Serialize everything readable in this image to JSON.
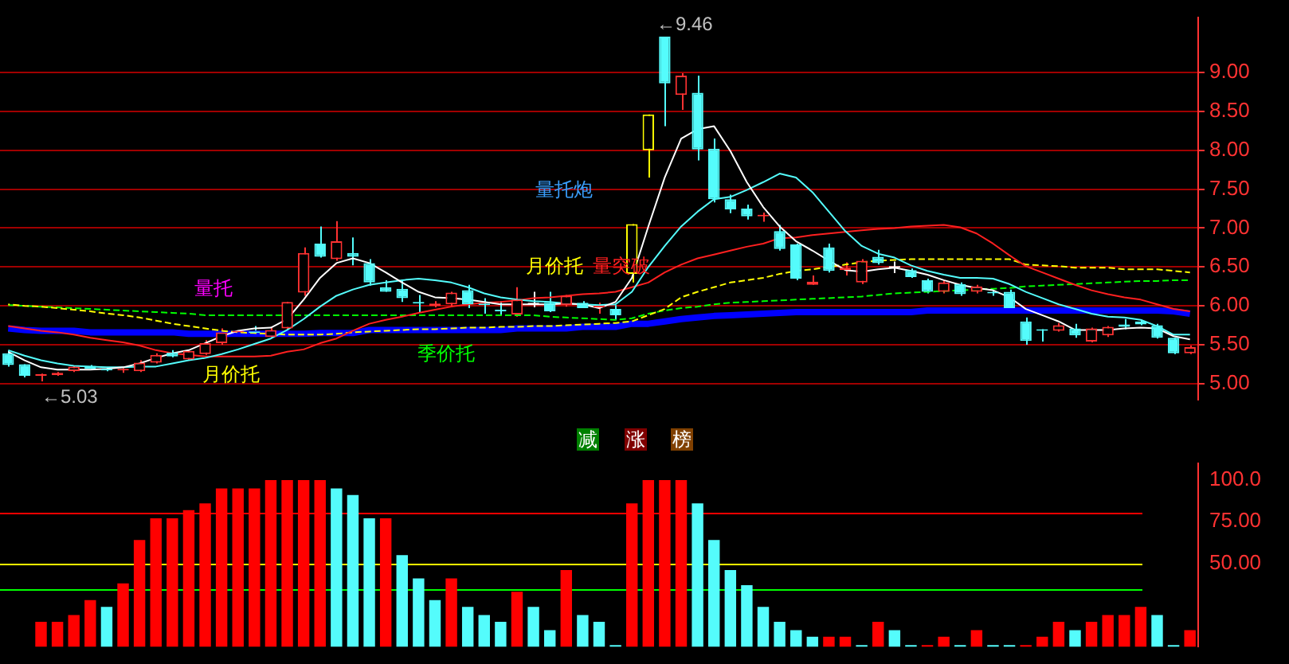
{
  "chart_data": [
    {
      "type": "candlestick",
      "categories": [
        null,
        null,
        null,
        null,
        null,
        null,
        null,
        null,
        null,
        null,
        null,
        null,
        null,
        null,
        null,
        null,
        null,
        null,
        null,
        null,
        null,
        null,
        null,
        null,
        null,
        null,
        null,
        null,
        null,
        null,
        null,
        null,
        null,
        null,
        null,
        null,
        null,
        null,
        null,
        null,
        null,
        null,
        null,
        null,
        null,
        null,
        null,
        null,
        null,
        null,
        null,
        null,
        null,
        null,
        null,
        null,
        null,
        null,
        null,
        null,
        null,
        null,
        null,
        null,
        null,
        null,
        null,
        null,
        null,
        null,
        null,
        null,
        null
      ],
      "ohlc": [
        [
          5.39,
          5.42,
          5.22,
          5.24
        ],
        [
          5.25,
          5.25,
          5.08,
          5.1
        ],
        [
          5.1,
          5.13,
          5.03,
          5.12
        ],
        [
          5.11,
          5.15,
          5.1,
          5.14
        ],
        [
          5.16,
          5.23,
          5.15,
          5.22
        ],
        [
          5.23,
          5.24,
          5.19,
          5.19
        ],
        [
          5.19,
          5.21,
          5.16,
          5.17
        ],
        [
          5.17,
          5.2,
          5.14,
          5.19
        ],
        [
          5.16,
          5.3,
          5.15,
          5.27
        ],
        [
          5.27,
          5.39,
          5.26,
          5.37
        ],
        [
          5.4,
          5.43,
          5.34,
          5.35
        ],
        [
          5.31,
          5.44,
          5.3,
          5.42
        ],
        [
          5.38,
          5.56,
          5.37,
          5.52
        ],
        [
          5.52,
          5.71,
          5.5,
          5.66
        ],
        [
          5.66,
          5.68,
          5.63,
          5.67
        ],
        [
          5.67,
          5.74,
          5.64,
          5.65
        ],
        [
          5.6,
          5.72,
          5.59,
          5.69
        ],
        [
          5.71,
          6.05,
          5.7,
          6.05
        ],
        [
          6.17,
          6.75,
          6.13,
          6.68
        ],
        [
          6.8,
          7.02,
          6.62,
          6.63
        ],
        [
          6.6,
          7.09,
          6.58,
          6.83
        ],
        [
          6.68,
          6.88,
          6.52,
          6.63
        ],
        [
          6.55,
          6.6,
          6.26,
          6.3
        ],
        [
          6.24,
          6.33,
          6.18,
          6.18
        ],
        [
          6.22,
          6.33,
          6.05,
          6.1
        ],
        [
          6.03,
          6.14,
          5.92,
          6.03
        ],
        [
          6.0,
          6.06,
          5.98,
          6.03
        ],
        [
          6.02,
          6.18,
          5.98,
          6.17
        ],
        [
          6.2,
          6.27,
          5.97,
          6.02
        ],
        [
          6.02,
          6.1,
          5.9,
          6.01
        ],
        [
          5.95,
          6.06,
          5.88,
          5.93
        ],
        [
          5.89,
          6.24,
          5.86,
          6.08
        ],
        [
          6.02,
          6.18,
          5.98,
          6.02
        ],
        [
          6.04,
          6.18,
          5.92,
          5.93
        ],
        [
          6.01,
          6.14,
          5.99,
          6.13
        ],
        [
          6.04,
          6.06,
          5.97,
          5.97
        ],
        [
          5.98,
          6.04,
          5.9,
          5.99
        ],
        [
          5.96,
          6.01,
          5.82,
          5.88
        ],
        [
          6.41,
          7.05,
          6.3,
          7.05
        ],
        [
          8.0,
          8.46,
          7.65,
          8.46
        ],
        [
          9.46,
          9.46,
          8.31,
          8.86
        ],
        [
          8.71,
          8.99,
          8.52,
          8.96
        ],
        [
          8.74,
          8.96,
          7.87,
          8.01
        ],
        [
          8.02,
          8.15,
          7.33,
          7.37
        ],
        [
          7.37,
          7.43,
          7.19,
          7.24
        ],
        [
          7.25,
          7.3,
          7.11,
          7.15
        ],
        [
          7.15,
          7.2,
          7.08,
          7.17
        ],
        [
          6.96,
          7.04,
          6.71,
          6.73
        ],
        [
          6.79,
          6.8,
          6.33,
          6.35
        ],
        [
          6.27,
          6.39,
          6.27,
          6.31
        ],
        [
          6.75,
          6.8,
          6.43,
          6.45
        ],
        [
          6.46,
          6.56,
          6.39,
          6.49
        ],
        [
          6.3,
          6.6,
          6.28,
          6.58
        ],
        [
          6.63,
          6.72,
          6.53,
          6.55
        ],
        [
          6.49,
          6.57,
          6.42,
          6.49
        ],
        [
          6.46,
          6.48,
          6.36,
          6.37
        ],
        [
          6.33,
          6.35,
          6.16,
          6.18
        ],
        [
          6.18,
          6.33,
          6.16,
          6.3
        ],
        [
          6.28,
          6.3,
          6.13,
          6.15
        ],
        [
          6.18,
          6.27,
          6.16,
          6.25
        ],
        [
          6.16,
          6.21,
          6.13,
          6.16
        ],
        [
          6.18,
          6.21,
          5.97,
          5.97
        ],
        [
          5.8,
          5.85,
          5.5,
          5.55
        ],
        [
          5.68,
          5.7,
          5.54,
          5.68
        ],
        [
          5.68,
          5.78,
          5.67,
          5.75
        ],
        [
          5.71,
          5.77,
          5.59,
          5.62
        ],
        [
          5.54,
          5.72,
          5.53,
          5.71
        ],
        [
          5.62,
          5.74,
          5.6,
          5.73
        ],
        [
          5.76,
          5.83,
          5.7,
          5.73
        ],
        [
          5.8,
          5.82,
          5.75,
          5.76
        ],
        [
          5.75,
          5.77,
          5.58,
          5.59
        ],
        [
          5.59,
          5.59,
          5.38,
          5.39
        ],
        [
          5.39,
          5.49,
          5.38,
          5.47
        ]
      ],
      "colors": [
        "#54fcfc",
        "#54fcfc",
        "#ff3232",
        "#ff3232",
        "#ff3232",
        "#54fcfc",
        "#54fcfc",
        "#ff3232",
        "#ff3232",
        "#ff3232",
        "#54fcfc",
        "#ff3232",
        "#ff3232",
        "#ff3232",
        "#ff3232",
        "#54fcfc",
        "#ff3232",
        "#ff3232",
        "#ff3232",
        "#54fcfc",
        "#ff3232",
        "#54fcfc",
        "#54fcfc",
        "#54fcfc",
        "#54fcfc",
        "#54fcfc",
        "#ff3232",
        "#ff3232",
        "#54fcfc",
        "#54fcfc",
        "#54fcfc",
        "#ff3232",
        "#ffffff",
        "#54fcfc",
        "#ff3232",
        "#54fcfc",
        "#ff3232",
        "#54fcfc",
        "#ffff00",
        "#ffff00",
        "#54fcfc",
        "#ff3232",
        "#54fcfc",
        "#54fcfc",
        "#54fcfc",
        "#54fcfc",
        "#ff3232",
        "#54fcfc",
        "#54fcfc",
        "#ff3232",
        "#54fcfc",
        "#ff3232",
        "#ff3232",
        "#54fcfc",
        "#ffffff",
        "#54fcfc",
        "#54fcfc",
        "#ff3232",
        "#54fcfc",
        "#ff3232",
        "#54fcfc",
        "#54fcfc",
        "#54fcfc",
        "#54fcfc",
        "#ff3232",
        "#54fcfc",
        "#ff3232",
        "#ff3232",
        "#54fcfc",
        "#54fcfc",
        "#54fcfc",
        "#54fcfc",
        "#ff3232"
      ],
      "series": [
        {
          "type": "line",
          "color": "#ffffff",
          "values": [
            5.41,
            5.3,
            5.21,
            5.18,
            5.18,
            5.18,
            5.19,
            5.21,
            5.26,
            5.33,
            5.39,
            5.43,
            5.52,
            5.61,
            5.68,
            5.71,
            5.72,
            5.83,
            6.08,
            6.36,
            6.55,
            6.61,
            6.55,
            6.43,
            6.3,
            6.18,
            6.11,
            6.1,
            6.08,
            6.05,
            6.02,
            6.02,
            6.02,
            6.02,
            6.03,
            6.02,
            5.97,
            6.05,
            6.36,
            7.02,
            7.65,
            8.15,
            8.27,
            8.31,
            7.99,
            7.59,
            7.27,
            7.02,
            6.83,
            6.71,
            6.58,
            6.46,
            6.44,
            6.47,
            6.49,
            6.45,
            6.4,
            6.33,
            6.27,
            6.23,
            6.2,
            6.11,
            5.96,
            5.88,
            5.8,
            5.69,
            5.69,
            5.69,
            5.71,
            5.72,
            5.71,
            5.61,
            5.57
          ]
        },
        {
          "type": "line",
          "color": "#54fcfc",
          "values": [
            5.43,
            5.36,
            5.3,
            5.26,
            5.23,
            5.22,
            5.21,
            5.21,
            5.22,
            5.22,
            5.26,
            5.3,
            5.33,
            5.38,
            5.44,
            5.51,
            5.58,
            5.69,
            5.83,
            5.99,
            6.13,
            6.21,
            6.27,
            6.3,
            6.33,
            6.35,
            6.33,
            6.3,
            6.24,
            6.16,
            6.11,
            6.08,
            6.06,
            6.05,
            6.03,
            6.02,
            6.01,
            6.02,
            6.18,
            6.5,
            6.77,
            7.02,
            7.21,
            7.37,
            7.4,
            7.49,
            7.59,
            7.7,
            7.65,
            7.46,
            7.21,
            6.96,
            6.77,
            6.67,
            6.62,
            6.52,
            6.45,
            6.4,
            6.36,
            6.36,
            6.35,
            6.28,
            6.18,
            6.1,
            6.02,
            5.96,
            5.9,
            5.86,
            5.85,
            5.82,
            5.74,
            5.63,
            5.63
          ]
        },
        {
          "type": "line",
          "color": "#ff2020",
          "values": [
            5.74,
            5.71,
            5.68,
            5.66,
            5.63,
            5.59,
            5.56,
            5.53,
            5.49,
            5.43,
            5.39,
            5.37,
            5.35,
            5.35,
            5.35,
            5.35,
            5.36,
            5.41,
            5.44,
            5.52,
            5.58,
            5.68,
            5.77,
            5.82,
            5.86,
            5.91,
            5.95,
            5.99,
            6.02,
            6.04,
            6.05,
            6.07,
            6.1,
            6.11,
            6.13,
            6.15,
            6.16,
            6.18,
            6.24,
            6.3,
            6.43,
            6.53,
            6.61,
            6.66,
            6.71,
            6.76,
            6.8,
            6.87,
            6.88,
            6.91,
            6.93,
            6.95,
            6.97,
            6.99,
            7.0,
            7.02,
            7.03,
            7.04,
            7.01,
            6.93,
            6.8,
            6.65,
            6.51,
            6.43,
            6.35,
            6.27,
            6.2,
            6.15,
            6.11,
            6.08,
            6.02,
            5.96,
            5.93
          ]
        },
        {
          "type": "line",
          "color": "#ffff00",
          "line_style": "dashed",
          "values": [
            6.02,
            6.0,
            5.99,
            5.97,
            5.95,
            5.93,
            5.9,
            5.88,
            5.85,
            5.81,
            5.77,
            5.74,
            5.71,
            5.68,
            5.66,
            5.65,
            5.64,
            5.63,
            5.63,
            5.63,
            5.64,
            5.66,
            5.67,
            5.68,
            5.69,
            5.7,
            5.7,
            5.71,
            5.72,
            5.72,
            5.73,
            5.73,
            5.74,
            5.74,
            5.75,
            5.76,
            5.77,
            5.78,
            5.8,
            5.88,
            5.96,
            6.11,
            6.18,
            6.24,
            6.3,
            6.33,
            6.36,
            6.41,
            6.45,
            6.47,
            6.5,
            6.53,
            6.56,
            6.58,
            6.59,
            6.6,
            6.6,
            6.6,
            6.6,
            6.6,
            6.6,
            6.6,
            6.53,
            6.52,
            6.51,
            6.49,
            6.49,
            6.49,
            6.47,
            6.47,
            6.47,
            6.45,
            6.43
          ]
        },
        {
          "type": "line",
          "color": "#00ff00",
          "line_style": "dashed",
          "values": [
            6.01,
            6.0,
            5.99,
            5.98,
            5.97,
            5.96,
            5.95,
            5.94,
            5.93,
            5.92,
            5.91,
            5.9,
            5.88,
            5.88,
            5.88,
            5.88,
            5.88,
            5.88,
            5.88,
            5.88,
            5.88,
            5.88,
            5.88,
            5.88,
            5.88,
            5.88,
            5.88,
            5.88,
            5.88,
            5.88,
            5.88,
            5.88,
            5.88,
            5.86,
            5.85,
            5.84,
            5.83,
            5.82,
            5.84,
            5.9,
            5.94,
            5.97,
            5.99,
            6.02,
            6.04,
            6.05,
            6.06,
            6.07,
            6.08,
            6.09,
            6.1,
            6.11,
            6.12,
            6.14,
            6.16,
            6.17,
            6.18,
            6.19,
            6.2,
            6.21,
            6.22,
            6.23,
            6.25,
            6.26,
            6.27,
            6.28,
            6.29,
            6.3,
            6.31,
            6.32,
            6.32,
            6.33,
            6.33
          ]
        },
        {
          "type": "line",
          "color": "#0000ff",
          "values": [
            5.71,
            5.69,
            5.68,
            5.68,
            5.68,
            5.66,
            5.66,
            5.66,
            5.66,
            5.66,
            5.66,
            5.64,
            5.64,
            5.64,
            5.64,
            5.64,
            5.64,
            5.64,
            5.64,
            5.65,
            5.65,
            5.65,
            5.69,
            5.69,
            5.69,
            5.69,
            5.69,
            5.69,
            5.69,
            5.69,
            5.69,
            5.71,
            5.71,
            5.71,
            5.71,
            5.73,
            5.73,
            5.73,
            5.77,
            5.77,
            5.8,
            5.83,
            5.85,
            5.87,
            5.88,
            5.89,
            5.9,
            5.91,
            5.92,
            5.92,
            5.92,
            5.92,
            5.92,
            5.92,
            5.92,
            5.92,
            5.94,
            5.94,
            5.94,
            5.94,
            5.94,
            5.94,
            5.94,
            5.94,
            5.94,
            5.94,
            5.94,
            5.94,
            5.94,
            5.94,
            5.94,
            5.93,
            5.9
          ]
        }
      ],
      "ylim": [
        4.79,
        9.71
      ],
      "yticks": [
        {
          "value": 5,
          "label": "5.00"
        },
        {
          "value": 5.5,
          "label": "5.50"
        },
        {
          "value": 6,
          "label": "6.00"
        },
        {
          "value": 6.5,
          "label": "6.50"
        },
        {
          "value": 7,
          "label": "7.00"
        },
        {
          "value": 7.5,
          "label": "7.50"
        },
        {
          "value": 8,
          "label": "8.00"
        },
        {
          "value": 8.5,
          "label": "8.50"
        },
        {
          "value": 9,
          "label": "9.00"
        }
      ],
      "grid": "y",
      "tick_labels": "y",
      "annotations": [
        "←5.03",
        "←9.46",
        "量托",
        "月价托",
        "季价托",
        "量托炮",
        "月价托",
        "量突破"
      ]
    },
    {
      "type": "bar",
      "categories": [
        null,
        null,
        null,
        null,
        null,
        null,
        null,
        null,
        null,
        null,
        null,
        null,
        null,
        null,
        null,
        null,
        null,
        null,
        null,
        null,
        null,
        null,
        null,
        null,
        null,
        null,
        null,
        null,
        null,
        null,
        null,
        null,
        null,
        null,
        null,
        null,
        null,
        null,
        null,
        null,
        null,
        null,
        null,
        null,
        null,
        null,
        null,
        null,
        null,
        null,
        null,
        null,
        null,
        null,
        null,
        null,
        null,
        null,
        null,
        null,
        null,
        null,
        null,
        null,
        null,
        null,
        null,
        null,
        null,
        null,
        null,
        null,
        null
      ],
      "values": [
        null,
        null,
        15,
        15,
        19,
        28,
        24,
        38,
        64,
        77,
        77,
        82,
        86,
        95,
        95,
        95,
        100,
        100,
        100,
        100,
        95,
        91,
        77,
        77,
        55,
        41,
        28,
        41,
        24,
        19,
        15,
        33,
        24,
        10,
        46,
        19,
        15,
        1,
        86,
        100,
        100,
        100,
        86,
        64,
        46,
        37,
        24,
        15,
        10,
        6,
        6,
        6,
        1,
        15,
        10,
        1,
        1,
        6,
        1,
        10,
        1,
        1,
        1,
        6,
        15,
        10,
        15,
        19,
        19,
        24,
        19,
        1,
        10
      ],
      "colors": [
        "#ff0000",
        "#ff0000",
        "#ff0000",
        "#ff0000",
        "#ff0000",
        "#ff0000",
        "#54fcfc",
        "#ff0000",
        "#ff0000",
        "#ff0000",
        "#ff0000",
        "#ff0000",
        "#ff0000",
        "#ff0000",
        "#ff0000",
        "#ff0000",
        "#ff0000",
        "#ff0000",
        "#ff0000",
        "#ff0000",
        "#54fcfc",
        "#54fcfc",
        "#54fcfc",
        "#ff0000",
        "#54fcfc",
        "#54fcfc",
        "#54fcfc",
        "#ff0000",
        "#54fcfc",
        "#54fcfc",
        "#54fcfc",
        "#ff0000",
        "#54fcfc",
        "#54fcfc",
        "#ff0000",
        "#54fcfc",
        "#54fcfc",
        "#54fcfc",
        "#ff0000",
        "#ff0000",
        "#ff0000",
        "#ff0000",
        "#54fcfc",
        "#54fcfc",
        "#54fcfc",
        "#54fcfc",
        "#54fcfc",
        "#54fcfc",
        "#54fcfc",
        "#54fcfc",
        "#ff0000",
        "#ff0000",
        "#54fcfc",
        "#ff0000",
        "#54fcfc",
        "#54fcfc",
        "#ff0000",
        "#ff0000",
        "#54fcfc",
        "#ff0000",
        "#54fcfc",
        "#54fcfc",
        "#ff0000",
        "#ff0000",
        "#ff0000",
        "#54fcfc",
        "#ff0000",
        "#ff0000",
        "#ff0000",
        "#ff0000",
        "#54fcfc",
        "#54fcfc",
        "#ff0000"
      ],
      "ylim": [
        0,
        110
      ],
      "yticks": [
        {
          "value": 50,
          "label": "50.00"
        },
        {
          "value": 75,
          "label": "75.00"
        },
        {
          "value": 100,
          "label": "100.0"
        }
      ],
      "ref_lines": [
        {
          "axis": "y",
          "value": 80,
          "color": "#ff0000"
        },
        {
          "axis": "y",
          "value": 50,
          "color": "#ffff00"
        },
        {
          "axis": "y",
          "value": 35,
          "color": "#00ff00"
        }
      ],
      "tick_labels": "y",
      "annotations": [
        "减",
        "涨",
        "榜"
      ]
    }
  ]
}
